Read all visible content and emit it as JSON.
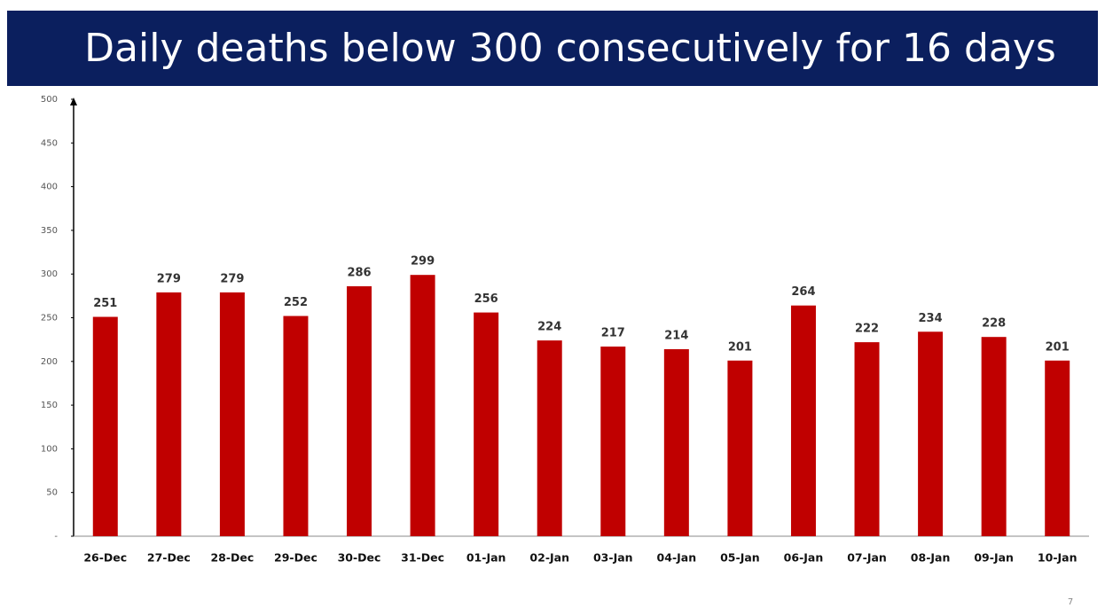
{
  "chart_data": {
    "type": "bar",
    "title": "Daily deaths below 300 consecutively for 16 days",
    "categories": [
      "26-Dec",
      "27-Dec",
      "28-Dec",
      "29-Dec",
      "30-Dec",
      "31-Dec",
      "01-Jan",
      "02-Jan",
      "03-Jan",
      "04-Jan",
      "05-Jan",
      "06-Jan",
      "07-Jan",
      "08-Jan",
      "09-Jan",
      "10-Jan"
    ],
    "values": [
      251,
      279,
      279,
      252,
      286,
      299,
      256,
      224,
      217,
      214,
      201,
      264,
      222,
      234,
      228,
      201
    ],
    "color": "#c00000",
    "ylim": [
      0,
      500
    ],
    "yticks": [
      {
        "value": 0,
        "label": "-"
      },
      50,
      100,
      150,
      200,
      250,
      300,
      350,
      400,
      450,
      500
    ],
    "grid": false
  },
  "page_number": "7"
}
